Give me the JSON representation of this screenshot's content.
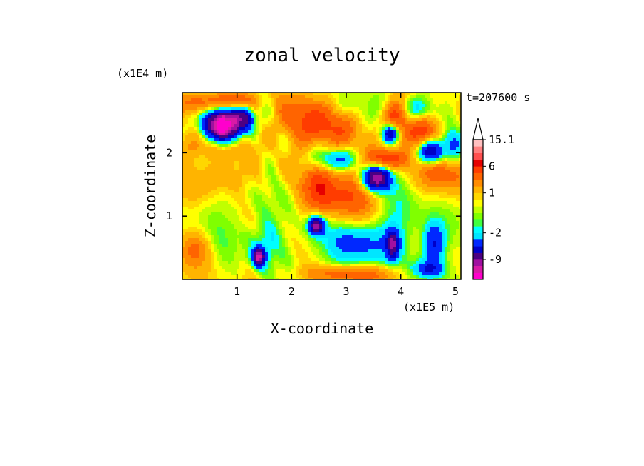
{
  "chart_data": {
    "type": "heatmap",
    "title": "zonal velocity",
    "xlabel": "X-coordinate",
    "ylabel": "Z-coordinate",
    "x_unit": "(x1E5 m)",
    "y_unit": "(x1E4 m)",
    "time_label": "t=207600 s",
    "xlim": [
      0,
      5.1
    ],
    "ylim": [
      0,
      2.95
    ],
    "xticks": [
      1,
      2,
      3,
      4,
      5
    ],
    "yticks": [
      1,
      2
    ],
    "colorbar": {
      "levels": [
        -14,
        -12,
        -10.5,
        -9,
        -7,
        -5,
        -3,
        -2,
        -1.5,
        -1,
        -0.5,
        0,
        0.5,
        1,
        2,
        3,
        4.5,
        6,
        8,
        10,
        12.5,
        15.1
      ],
      "colors": [
        "#ff00cc",
        "#d81aa6",
        "#a010a0",
        "#4b0082",
        "#0000c8",
        "#0028ff",
        "#00e6ff",
        "#00ffff",
        "#40ff40",
        "#80ff00",
        "#c0ff00",
        "#ffff00",
        "#ffd700",
        "#ffb400",
        "#ff8c00",
        "#ff6400",
        "#ff3c00",
        "#e60000",
        "#ff5050",
        "#ff8080",
        "#ffc0c0"
      ],
      "labels": [
        {
          "value": 15.1,
          "text": "15.1"
        },
        {
          "value": 6,
          "text": "6"
        },
        {
          "value": 1,
          "text": "1"
        },
        {
          "value": -2,
          "text": "-2"
        },
        {
          "value": -9,
          "text": "-9"
        }
      ],
      "extend": "max"
    },
    "features": [
      {
        "x": 0.55,
        "z": 2.45,
        "sx": 0.15,
        "sz": 0.18,
        "amp": -9
      },
      {
        "x": 0.75,
        "z": 2.4,
        "sx": 0.1,
        "sz": 0.2,
        "amp": -10
      },
      {
        "x": 0.95,
        "z": 2.45,
        "sx": 0.1,
        "sz": 0.2,
        "amp": -10
      },
      {
        "x": 1.15,
        "z": 2.55,
        "sx": 0.1,
        "sz": 0.15,
        "amp": -8
      },
      {
        "x": 0.4,
        "z": 2.8,
        "sx": 0.3,
        "sz": 0.12,
        "amp": 4
      },
      {
        "x": 0.6,
        "z": 2.1,
        "sx": 0.35,
        "sz": 0.15,
        "amp": 3
      },
      {
        "x": 1.0,
        "z": 2.8,
        "sx": 0.25,
        "sz": 0.1,
        "amp": 5
      },
      {
        "x": 2.3,
        "z": 2.5,
        "sx": 0.45,
        "sz": 0.25,
        "amp": 4
      },
      {
        "x": 2.8,
        "z": 2.4,
        "sx": 0.3,
        "sz": 0.25,
        "amp": 3
      },
      {
        "x": 3.0,
        "z": 2.65,
        "sx": 0.25,
        "sz": 0.2,
        "amp": -2.5
      },
      {
        "x": 2.85,
        "z": 1.9,
        "sx": 0.3,
        "sz": 0.12,
        "amp": -4
      },
      {
        "x": 3.55,
        "z": 1.6,
        "sx": 0.18,
        "sz": 0.14,
        "amp": -11
      },
      {
        "x": 3.7,
        "z": 1.9,
        "sx": 0.25,
        "sz": 0.12,
        "amp": 6
      },
      {
        "x": 3.8,
        "z": 2.3,
        "sx": 0.1,
        "sz": 0.1,
        "amp": -8
      },
      {
        "x": 3.9,
        "z": 2.6,
        "sx": 0.15,
        "sz": 0.15,
        "amp": 5
      },
      {
        "x": 4.3,
        "z": 2.7,
        "sx": 0.2,
        "sz": 0.15,
        "amp": -3
      },
      {
        "x": 4.4,
        "z": 2.35,
        "sx": 0.3,
        "sz": 0.15,
        "amp": 5
      },
      {
        "x": 4.55,
        "z": 2.0,
        "sx": 0.15,
        "sz": 0.12,
        "amp": -8
      },
      {
        "x": 4.8,
        "z": 1.7,
        "sx": 0.3,
        "sz": 0.2,
        "amp": 4
      },
      {
        "x": 4.95,
        "z": 2.2,
        "sx": 0.15,
        "sz": 0.25,
        "amp": -4
      },
      {
        "x": 3.0,
        "z": 1.3,
        "sx": 0.4,
        "sz": 0.3,
        "amp": 4
      },
      {
        "x": 2.5,
        "z": 1.45,
        "sx": 0.2,
        "sz": 0.25,
        "amp": 4
      },
      {
        "x": 2.45,
        "z": 0.85,
        "sx": 0.1,
        "sz": 0.1,
        "amp": -10
      },
      {
        "x": 3.0,
        "z": 0.55,
        "sx": 0.5,
        "sz": 0.3,
        "amp": -2.5
      },
      {
        "x": 3.5,
        "z": 0.6,
        "sx": 0.4,
        "sz": 0.25,
        "amp": -2
      },
      {
        "x": 3.85,
        "z": 0.55,
        "sx": 0.08,
        "sz": 0.15,
        "amp": -8
      },
      {
        "x": 3.1,
        "z": 0.08,
        "sx": 0.6,
        "sz": 0.1,
        "amp": 4
      },
      {
        "x": 4.6,
        "z": 0.55,
        "sx": 0.15,
        "sz": 0.25,
        "amp": -6
      },
      {
        "x": 4.5,
        "z": 0.15,
        "sx": 0.2,
        "sz": 0.1,
        "amp": -5
      },
      {
        "x": 1.5,
        "z": 0.55,
        "sx": 0.2,
        "sz": 0.25,
        "amp": -2.5
      },
      {
        "x": 0.8,
        "z": 0.9,
        "sx": 0.6,
        "sz": 0.35,
        "amp": -1
      },
      {
        "x": 0.6,
        "z": 1.6,
        "sx": 0.4,
        "sz": 0.2,
        "amp": 2
      },
      {
        "x": 4.0,
        "z": 1.05,
        "sx": 0.3,
        "sz": 0.35,
        "amp": -1.5
      },
      {
        "x": 1.4,
        "z": 0.35,
        "sx": 0.08,
        "sz": 0.1,
        "amp": -10
      },
      {
        "x": 0.25,
        "z": 0.5,
        "sx": 0.2,
        "sz": 0.2,
        "amp": 3
      }
    ]
  }
}
